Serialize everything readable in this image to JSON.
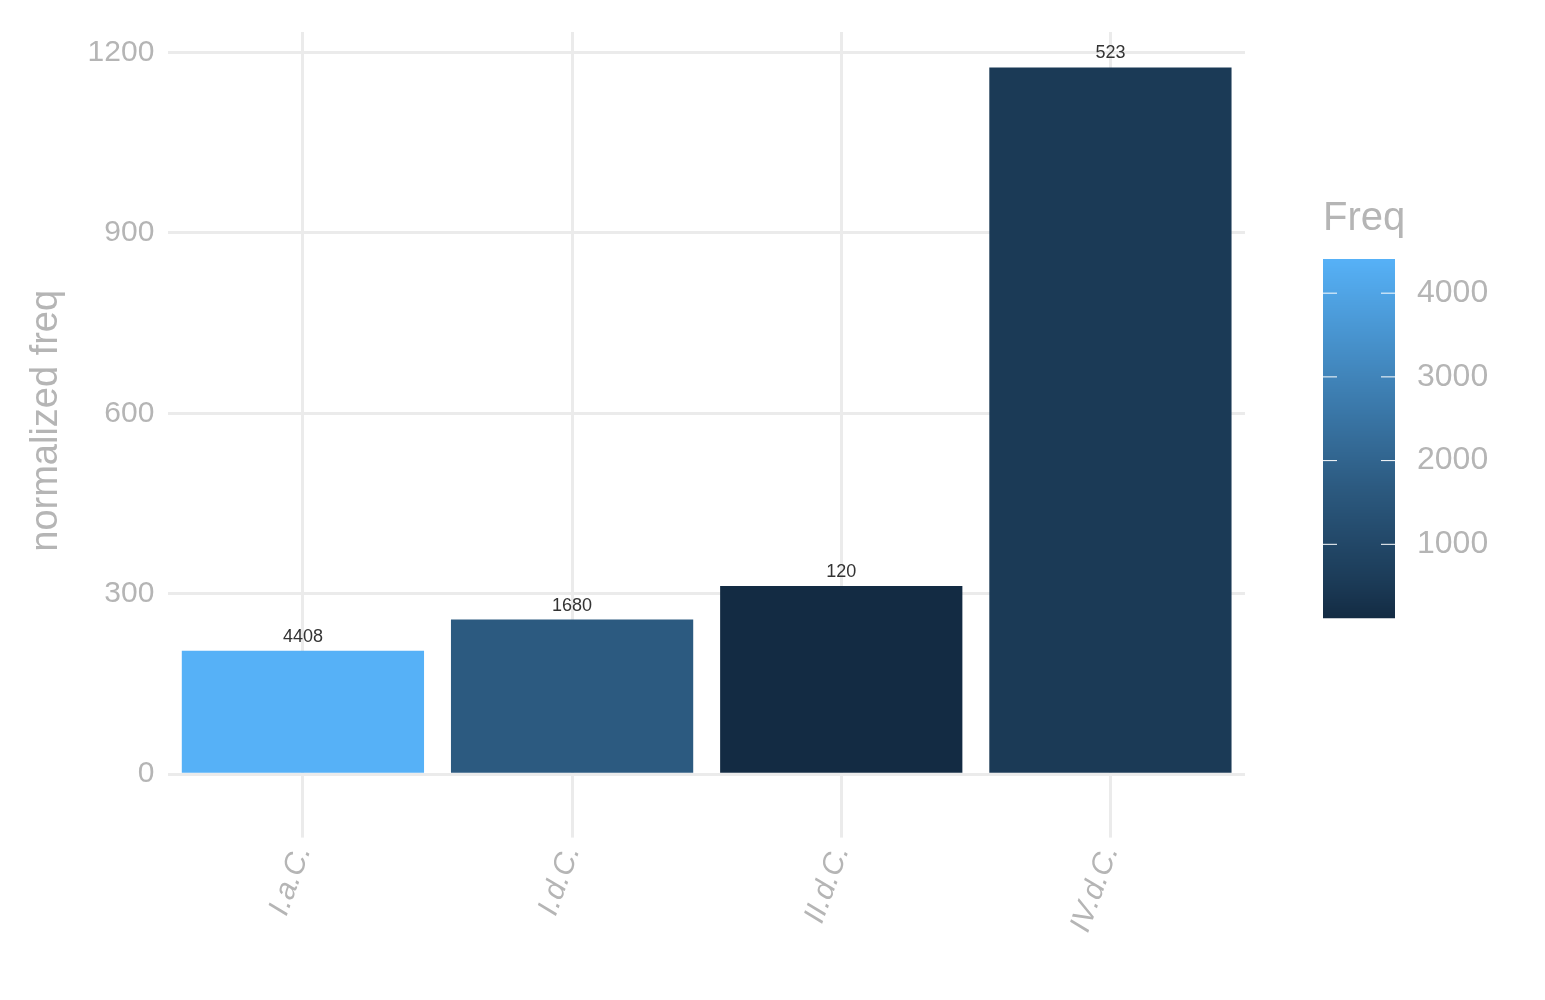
{
  "chart_data": {
    "type": "bar",
    "ylabel": "normalized freq",
    "clabel": "Freq",
    "categories": [
      "I.a.C.",
      "I.d.C.",
      "II.d.C.",
      "IV.d.C."
    ],
    "values": [
      205,
      257,
      313,
      1175
    ],
    "annotations": [
      {
        "text": "4408",
        "x": "I.a.C.",
        "y": 205
      },
      {
        "text": "1680",
        "x": "I.d.C.",
        "y": 257
      },
      {
        "text": "120",
        "x": "II.d.C.",
        "y": 313
      },
      {
        "text": "523",
        "x": "IV.d.C.",
        "y": 1175
      }
    ],
    "cvalues": [
      4408,
      1680,
      120,
      523
    ],
    "colors": [
      "#56b1f7",
      "#2c5a80",
      "#132b43",
      "#1b3a56"
    ],
    "clim": [
      120,
      4408
    ],
    "cticks": [
      1000,
      2000,
      3000,
      4000
    ],
    "ylim": [
      -59,
      1234
    ],
    "yticks": [
      0,
      300,
      600,
      900,
      1200
    ],
    "grid": true,
    "legend": false
  }
}
